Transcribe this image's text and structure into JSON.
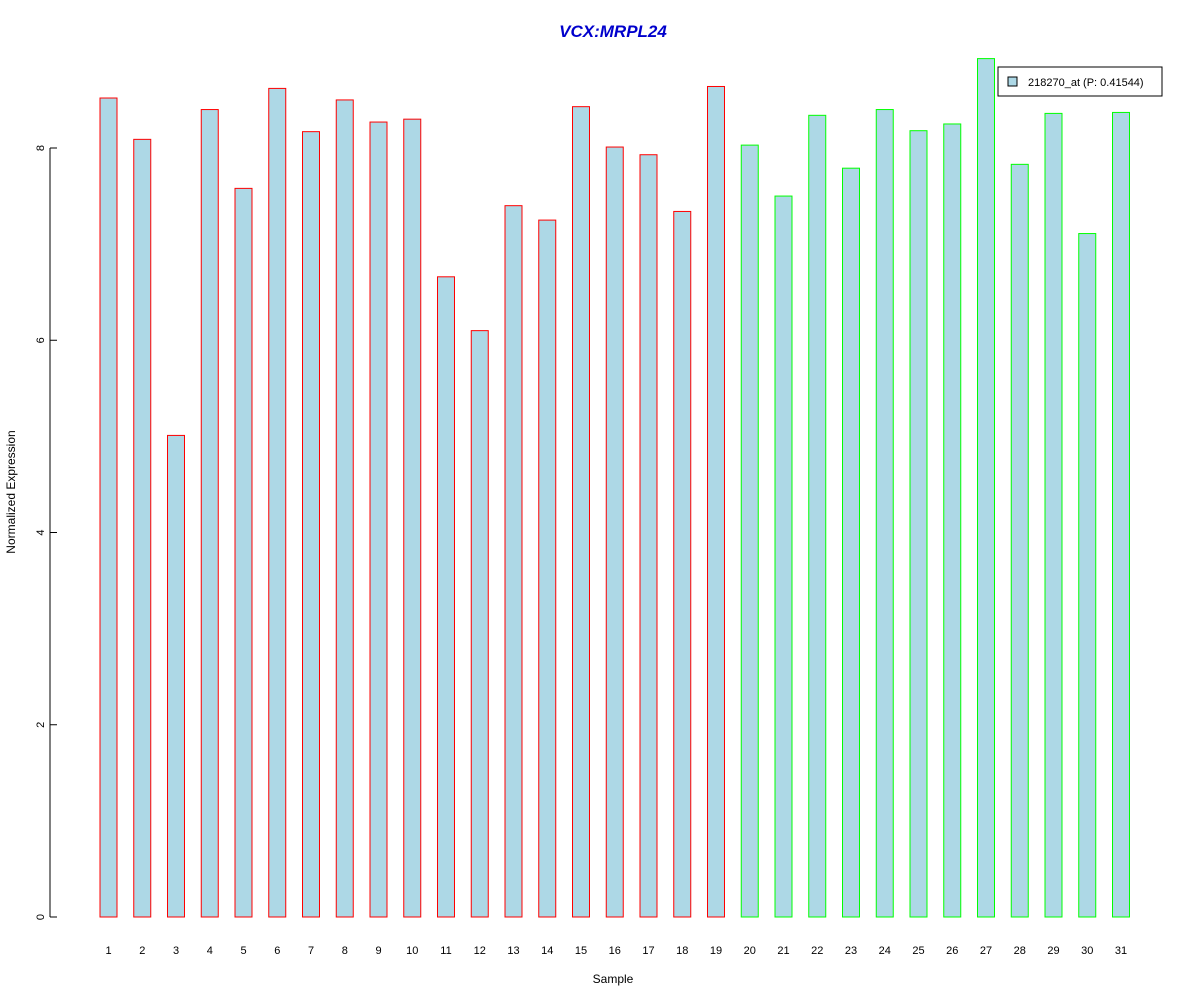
{
  "chart_data": {
    "type": "bar",
    "title": "VCX:MRPL24",
    "xlabel": "Sample",
    "ylabel": "Normalized Expression",
    "ylim": [
      0,
      9
    ],
    "yticks": [
      0,
      2,
      4,
      6,
      8
    ],
    "categories": [
      "1",
      "2",
      "3",
      "4",
      "5",
      "6",
      "7",
      "8",
      "9",
      "10",
      "11",
      "12",
      "13",
      "14",
      "15",
      "16",
      "17",
      "18",
      "19",
      "20",
      "21",
      "22",
      "23",
      "24",
      "25",
      "26",
      "27",
      "28",
      "29",
      "30",
      "31"
    ],
    "values": [
      8.52,
      8.09,
      5.01,
      8.4,
      7.58,
      8.62,
      8.17,
      8.5,
      8.27,
      8.3,
      6.66,
      6.1,
      7.4,
      7.25,
      8.43,
      8.01,
      7.93,
      7.34,
      8.64,
      8.03,
      7.5,
      8.34,
      7.79,
      8.4,
      8.18,
      8.25,
      8.93,
      7.83,
      8.36,
      7.11,
      8.37
    ],
    "groups": [
      1,
      1,
      1,
      1,
      1,
      1,
      1,
      1,
      1,
      1,
      1,
      1,
      1,
      1,
      1,
      1,
      1,
      1,
      1,
      2,
      2,
      2,
      2,
      2,
      2,
      2,
      2,
      2,
      2,
      2,
      2
    ],
    "series": [
      {
        "name": "218270_at (P: 0.41544)"
      }
    ],
    "legend_position": "top-right",
    "grid": false,
    "colors": {
      "title": "#0000cc",
      "bar_fill": "#add8e6",
      "group1_border": "#ff0000",
      "group2_border": "#00ff00",
      "axis": "#000000"
    }
  }
}
